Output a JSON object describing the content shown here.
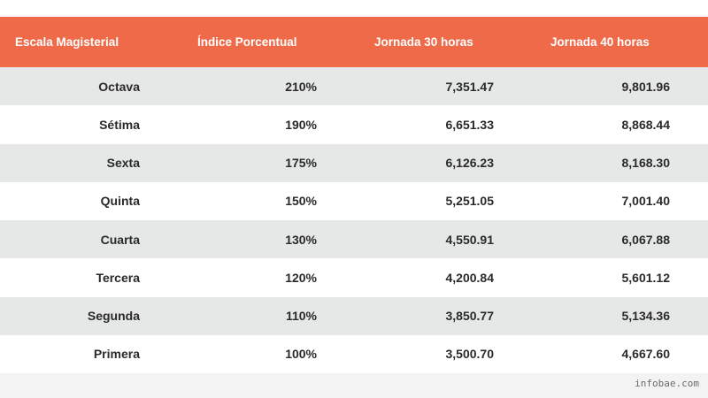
{
  "chart_data": {
    "type": "table",
    "columns": [
      "Escala Magisterial",
      "Índice Porcentual",
      "Jornada 30 horas",
      "Jornada 40 horas"
    ],
    "rows": [
      [
        "Octava",
        "210%",
        "7,351.47",
        "9,801.96"
      ],
      [
        "Sétima",
        "190%",
        "6,651.33",
        "8,868.44"
      ],
      [
        "Sexta",
        "175%",
        "6,126.23",
        "8,168.30"
      ],
      [
        "Quinta",
        "150%",
        "5,251.05",
        "7,001.40"
      ],
      [
        "Cuarta",
        "130%",
        "4,550.91",
        "6,067.88"
      ],
      [
        "Tercera",
        "120%",
        "4,200.84",
        "5,601.12"
      ],
      [
        "Segunda",
        "110%",
        "3,850.77",
        "5,134.36"
      ],
      [
        "Primera",
        "100%",
        "3,500.70",
        "4,667.60"
      ]
    ]
  },
  "colors": {
    "header_bg": "#ee6a49",
    "header_text": "#ffffff",
    "row_alt_bg": "#e6e8e8",
    "row_bg": "#ffffff"
  },
  "footer": {
    "credit": "infobae.com"
  }
}
